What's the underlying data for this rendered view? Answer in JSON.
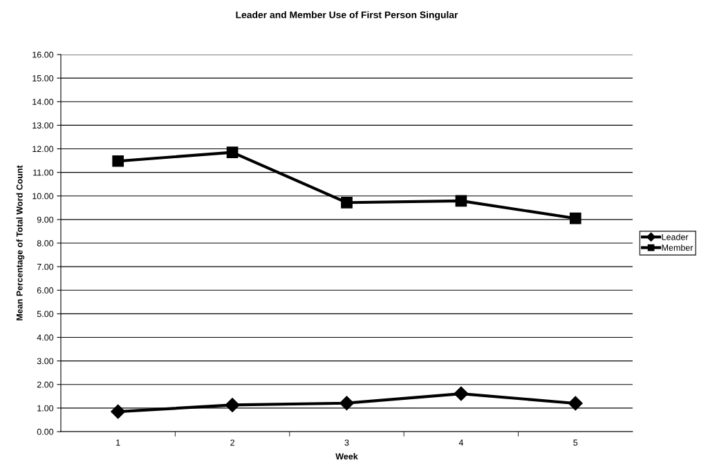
{
  "chart_data": {
    "type": "line",
    "title": "Leader and Member Use of First Person Singular",
    "xlabel": "Week",
    "ylabel": "Mean Percentage of Total Word Count",
    "categories": [
      "1",
      "2",
      "3",
      "4",
      "5"
    ],
    "series": [
      {
        "name": "Leader",
        "color": "#000000",
        "marker": "diamond",
        "values": [
          0.85,
          1.13,
          1.21,
          1.61,
          1.2
        ]
      },
      {
        "name": "Member",
        "color": "#000000",
        "marker": "square",
        "values": [
          11.48,
          11.85,
          9.72,
          9.79,
          9.05
        ]
      }
    ],
    "ylim": [
      0,
      16
    ],
    "yticks": [
      {
        "value": 0,
        "label": "0.00"
      },
      {
        "value": 1,
        "label": "1.00"
      },
      {
        "value": 2,
        "label": "2.00"
      },
      {
        "value": 3,
        "label": "3.00"
      },
      {
        "value": 4,
        "label": "4.00"
      },
      {
        "value": 5,
        "label": "5.00"
      },
      {
        "value": 6,
        "label": "6.00"
      },
      {
        "value": 7,
        "label": "7.00"
      },
      {
        "value": 8,
        "label": "8.00"
      },
      {
        "value": 9,
        "label": "9.00"
      },
      {
        "value": 10,
        "label": "10.00"
      },
      {
        "value": 11,
        "label": "11.00"
      },
      {
        "value": 12,
        "label": "12.00"
      },
      {
        "value": 13,
        "label": "13.00"
      },
      {
        "value": 14,
        "label": "14.00"
      },
      {
        "value": 15,
        "label": "15.00"
      },
      {
        "value": 16,
        "label": "16.00"
      }
    ],
    "grid": "y",
    "legend": "right",
    "line_style": "solid"
  }
}
